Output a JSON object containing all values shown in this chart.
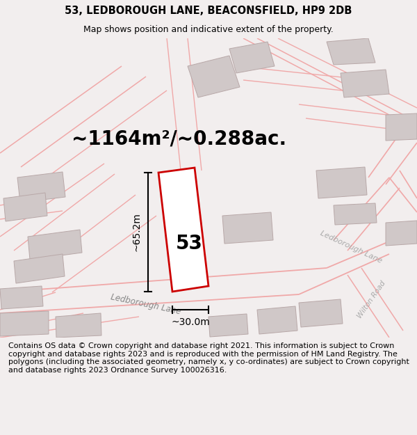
{
  "title_line1": "53, LEDBOROUGH LANE, BEACONSFIELD, HP9 2DB",
  "title_line2": "Map shows position and indicative extent of the property.",
  "area_text": "~1164m²/~0.288ac.",
  "number_label": "53",
  "dim_height": "~65.2m",
  "dim_width": "~30.0m",
  "road_label_main": "Ledborough Lane",
  "road_label_upper": "Ledborough Lane",
  "road_label_wilton": "Wilton Road",
  "footer_text": "Contains OS data © Crown copyright and database right 2021. This information is subject to Crown copyright and database rights 2023 and is reproduced with the permission of HM Land Registry. The polygons (including the associated geometry, namely x, y co-ordinates) are subject to Crown copyright and database rights 2023 Ordnance Survey 100026316.",
  "bg_color": "#f2eeee",
  "map_bg": "#fafafa",
  "plot_edge_color": "#cc0000",
  "building_fill": "#d0c8c8",
  "building_edge": "#b8a8a8",
  "road_line_color": "#f0a8a8",
  "road_fill_color": "#eedede",
  "title_fontsize": 10.5,
  "subtitle_fontsize": 9.0,
  "area_fontsize": 20,
  "num_fontsize": 20,
  "dim_fontsize": 10,
  "road_label_color": "#888888",
  "footer_fontsize": 8.0
}
